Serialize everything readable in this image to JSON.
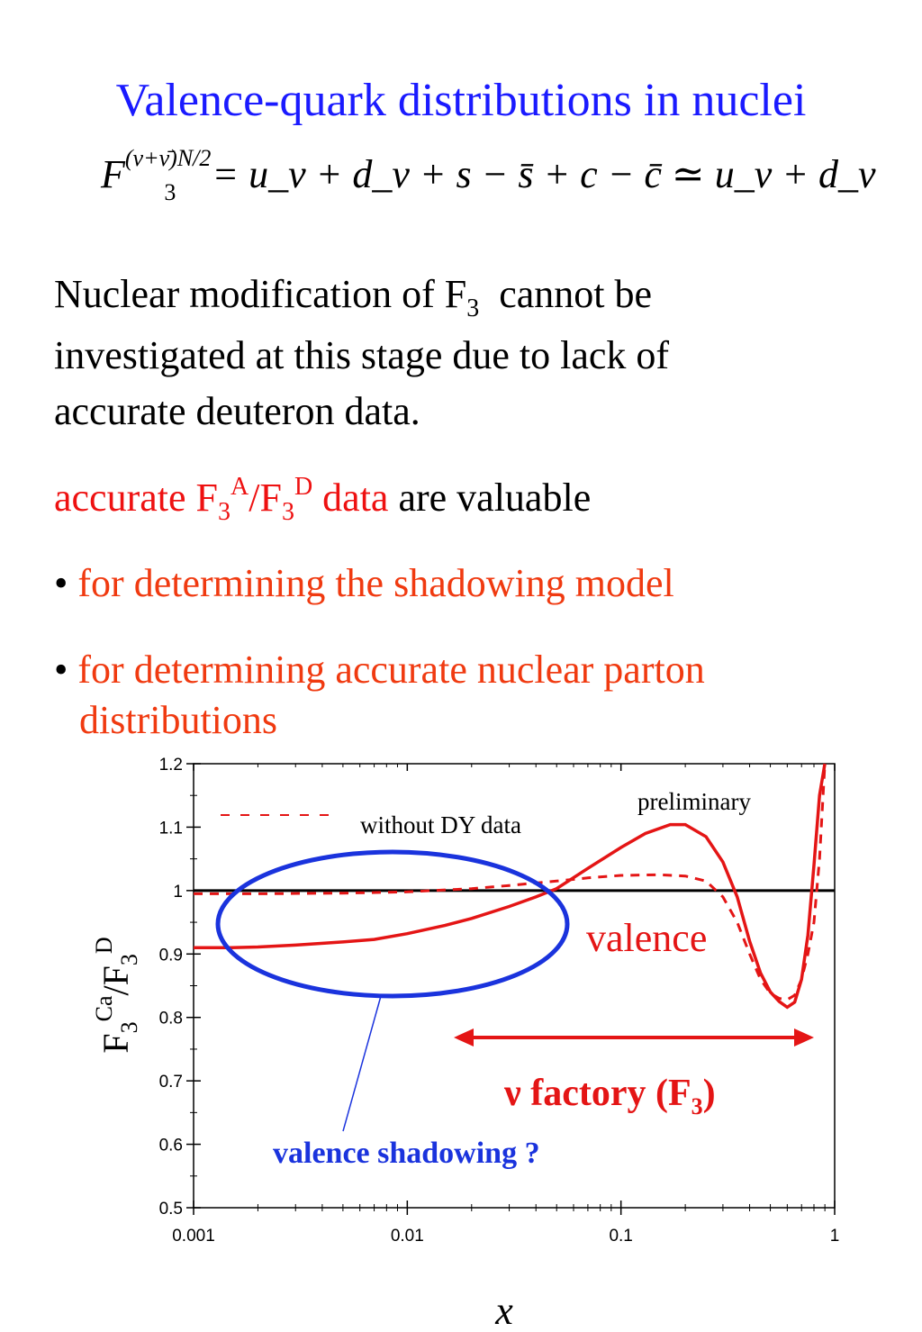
{
  "slide": {
    "title": "Valence-quark distributions in nuclei",
    "formula": {
      "lhs_base": "F",
      "lhs_sup": "(ν+ν̄)N/2",
      "lhs_sub": "3",
      "rhs": "= u_v + d_v + s − s̄ + c − c̄ ≃ u_v + d_v"
    },
    "paragraph1": {
      "line1_a": "Nuclear modification of F",
      "line1_sub": "3",
      "line1_b": "  cannot be",
      "line2": "investigated at this stage due to lack of",
      "line3": "accurate deuteron data."
    },
    "paragraph2": {
      "red_a": "accurate F",
      "sub1": "3",
      "sup1": "A",
      "slash": "/F",
      "sub2": "3",
      "sup2": "D",
      "red_b": " data",
      "black": " are valuable"
    },
    "bullet_char": "•",
    "bullet1": "for determining the shadowing model",
    "bullet2_line1": "for determining accurate nuclear parton",
    "bullet2_line2": "distributions"
  },
  "colors": {
    "title": "#1a1aff",
    "red": "#ee1111",
    "orange_red": "#f03a10",
    "ellipse": "#1a33dd",
    "curve": "#e41515"
  },
  "chart_data": {
    "type": "line",
    "x_scale": "log",
    "xlim": [
      0.001,
      1
    ],
    "ylim": [
      0.5,
      1.2
    ],
    "x_ticks": [
      0.001,
      0.01,
      0.1,
      1
    ],
    "x_tick_labels": [
      "0.001",
      "0.01",
      "0.1",
      "1"
    ],
    "y_ticks": [
      0.5,
      0.6,
      0.7,
      0.8,
      0.9,
      1.0,
      1.1,
      1.2
    ],
    "y_tick_labels": [
      "0.5",
      "0.6",
      "0.7",
      "0.8",
      "0.9",
      "1",
      "1.1",
      "1.2"
    ],
    "xlabel": "x",
    "ylabel": "F3Ca/F3D",
    "ylabel_parts": {
      "f": "F",
      "sub1": "3",
      "sup1": "Ca",
      "slash": "/F",
      "sub2": "3",
      "sup2": "D"
    },
    "series": [
      {
        "style": "solid",
        "x": [
          0.001,
          0.0015,
          0.002,
          0.003,
          0.005,
          0.007,
          0.01,
          0.015,
          0.02,
          0.03,
          0.04,
          0.05,
          0.07,
          0.1,
          0.13,
          0.17,
          0.2,
          0.25,
          0.3,
          0.35,
          0.4,
          0.45,
          0.5,
          0.55,
          0.6,
          0.65,
          0.7,
          0.75,
          0.8,
          0.85,
          0.9
        ],
        "y": [
          0.91,
          0.91,
          0.911,
          0.914,
          0.919,
          0.923,
          0.932,
          0.945,
          0.956,
          0.975,
          0.99,
          1.003,
          1.035,
          1.068,
          1.09,
          1.104,
          1.104,
          1.085,
          1.045,
          0.99,
          0.92,
          0.87,
          0.84,
          0.825,
          0.816,
          0.824,
          0.86,
          0.93,
          1.04,
          1.15,
          1.22
        ]
      },
      {
        "name": "without DY data",
        "style": "dashed",
        "x": [
          0.001,
          0.002,
          0.005,
          0.01,
          0.02,
          0.03,
          0.05,
          0.07,
          0.1,
          0.15,
          0.2,
          0.25,
          0.3,
          0.35,
          0.4,
          0.45,
          0.5,
          0.55,
          0.6,
          0.65,
          0.7,
          0.75,
          0.8,
          0.85,
          0.9
        ],
        "y": [
          0.995,
          0.995,
          0.996,
          0.998,
          1.003,
          1.008,
          1.015,
          1.02,
          1.024,
          1.025,
          1.023,
          1.015,
          0.99,
          0.95,
          0.9,
          0.86,
          0.838,
          0.83,
          0.828,
          0.835,
          0.86,
          0.9,
          0.95,
          1.05,
          1.2
        ]
      }
    ],
    "reference_line": 1.0,
    "annotations": {
      "preliminary": "preliminary",
      "valence": "valence",
      "factory_a": "ν factory (F",
      "factory_sub": "3",
      "factory_b": ")",
      "valence_shadowing": "valence shadowing ?"
    }
  }
}
